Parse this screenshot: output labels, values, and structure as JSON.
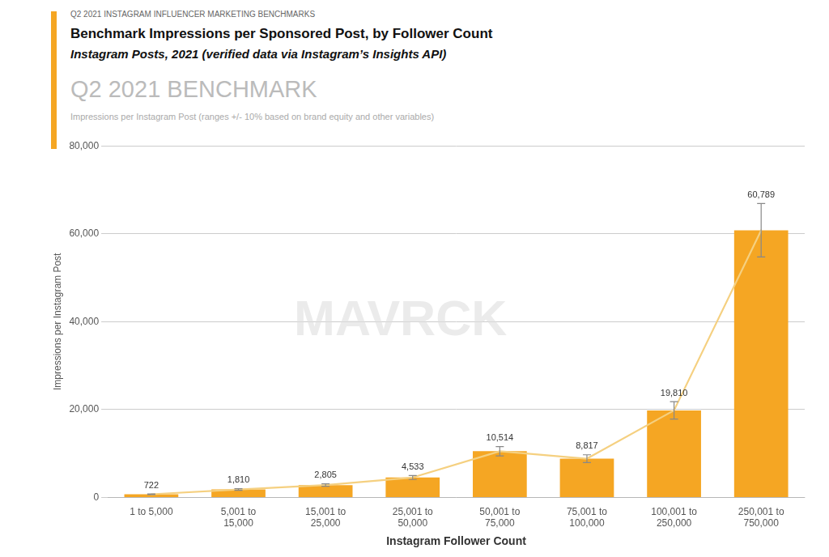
{
  "chart_data": {
    "type": "bar",
    "header_label": "Q2 2021 INSTAGRAM INFLUENCER MARKETING BENCHMARKS",
    "title": "Benchmark Impressions per Sponsored Post, by Follower Count",
    "title_line2": "Instagram Posts, 2021 (verified data via Instagram’s Insights API)",
    "benchmark_title": "Q2 2021 BENCHMARK",
    "subtitle": "Impressions per Instagram Post (ranges +/- 10% based on brand equity and other variables)",
    "watermark": "MAVRCK",
    "categories": [
      "1 to 5,000",
      "5,001 to\n15,000",
      "15,001 to\n25,000",
      "25,001 to\n50,000",
      "50,001 to\n75,000",
      "75,001 to\n100,000",
      "100,001 to\n250,000",
      "250,001 to\n750,000"
    ],
    "series": [
      {
        "type": "bar",
        "color": "#F5A623",
        "values": [
          722,
          1810,
          2805,
          4533,
          10514,
          8817,
          19810,
          60789
        ],
        "errors": [
          72.2,
          181,
          280.5,
          453.3,
          1051.4,
          881.7,
          1981,
          6078.9
        ],
        "value_labels": [
          "722",
          "1,810",
          "2,805",
          "4,533",
          "10,514",
          "8,817",
          "19,810",
          "60,789"
        ]
      },
      {
        "type": "line",
        "color": "#F5D080",
        "values": [
          722,
          1810,
          2805,
          4533,
          10514,
          8817,
          19810,
          60789
        ]
      }
    ],
    "data_labels": true,
    "xlabel": "Instagram Follower Count",
    "ylabel": "Impressions per Instagram Post",
    "ylim": [
      0,
      80000
    ],
    "yticks": [
      0,
      {
        "value": 20000,
        "label": "20,000"
      },
      {
        "value": 40000,
        "label": "40,000"
      },
      {
        "value": 60000,
        "label": "60,000"
      },
      {
        "value": 80000,
        "label": "80,000"
      }
    ],
    "grid": true
  }
}
